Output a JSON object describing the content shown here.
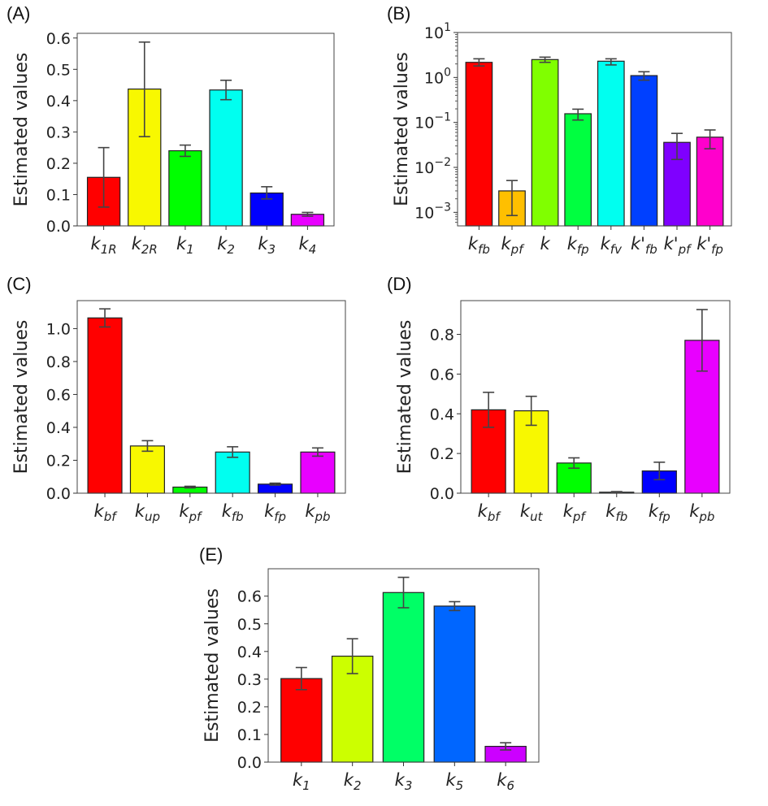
{
  "chart_data": [
    {
      "panel": "(A)",
      "type": "bar",
      "ylabel": "Estimated values",
      "yscale": "linear",
      "ylim": [
        0,
        0.615
      ],
      "yticks": [
        0.0,
        0.1,
        0.2,
        0.3,
        0.4,
        0.5,
        0.6
      ],
      "ytick_labels": [
        "0.0",
        "0.1",
        "0.2",
        "0.3",
        "0.4",
        "0.5",
        "0.6"
      ],
      "categories": [
        {
          "k": "k",
          "sub": "1R"
        },
        {
          "k": "k",
          "sub": "2R"
        },
        {
          "k": "k",
          "sub": "1"
        },
        {
          "k": "k",
          "sub": "2"
        },
        {
          "k": "k",
          "sub": "3"
        },
        {
          "k": "k",
          "sub": "4"
        }
      ],
      "values": [
        0.155,
        0.437,
        0.24,
        0.434,
        0.105,
        0.037
      ],
      "err_low": [
        0.06,
        0.285,
        0.222,
        0.403,
        0.086,
        0.031
      ],
      "err_high": [
        0.25,
        0.587,
        0.258,
        0.465,
        0.125,
        0.043
      ],
      "colors": [
        "#ff0000",
        "#f8f800",
        "#00ff00",
        "#00fff0",
        "#0000ff",
        "#e800ff"
      ]
    },
    {
      "panel": "(B)",
      "type": "bar",
      "ylabel": "Estimated values",
      "yscale": "log",
      "ylim": [
        0.0005,
        10
      ],
      "yticks": [
        0.001,
        0.01,
        0.1,
        1,
        10
      ],
      "ytick_labels": [
        {
          "base": "10",
          "exp": "−3"
        },
        {
          "base": "10",
          "exp": "−2"
        },
        {
          "base": "10",
          "exp": "−1"
        },
        {
          "base": "10",
          "exp": "0"
        },
        {
          "base": "10",
          "exp": "1"
        }
      ],
      "categories": [
        {
          "k": "k",
          "sub": "fb"
        },
        {
          "k": "k",
          "sub": "pf"
        },
        {
          "k": "k",
          "sub": ""
        },
        {
          "k": "k",
          "sub": "fp"
        },
        {
          "k": "k",
          "sub": "fv"
        },
        {
          "k": "k'",
          "sub": "fb"
        },
        {
          "k": "k'",
          "sub": "pf"
        },
        {
          "k": "k'",
          "sub": "fp"
        }
      ],
      "values": [
        2.17,
        0.003,
        2.5,
        0.156,
        2.3,
        1.1,
        0.036,
        0.047
      ],
      "err_low": [
        1.8,
        0.00085,
        2.17,
        0.113,
        1.9,
        0.87,
        0.015,
        0.026
      ],
      "err_high": [
        2.6,
        0.0051,
        2.83,
        0.197,
        2.6,
        1.34,
        0.057,
        0.068
      ],
      "colors": [
        "#ff0000",
        "#ffbf00",
        "#80ff00",
        "#00ff40",
        "#00fff0",
        "#0040ff",
        "#7f00ff",
        "#ff00cc"
      ]
    },
    {
      "panel": "(C)",
      "type": "bar",
      "ylabel": "Estimated values",
      "yscale": "linear",
      "ylim": [
        0,
        1.17
      ],
      "yticks": [
        0.0,
        0.2,
        0.4,
        0.6,
        0.8,
        1.0
      ],
      "ytick_labels": [
        "0.0",
        "0.2",
        "0.4",
        "0.6",
        "0.8",
        "1.0"
      ],
      "categories": [
        {
          "k": "k",
          "sub": "bf"
        },
        {
          "k": "k",
          "sub": "up"
        },
        {
          "k": "k",
          "sub": "pf"
        },
        {
          "k": "k",
          "sub": "fb"
        },
        {
          "k": "k",
          "sub": "fp"
        },
        {
          "k": "k",
          "sub": "pb"
        }
      ],
      "values": [
        1.065,
        0.287,
        0.037,
        0.25,
        0.055,
        0.25
      ],
      "err_low": [
        1.01,
        0.255,
        0.032,
        0.218,
        0.049,
        0.225
      ],
      "err_high": [
        1.12,
        0.319,
        0.042,
        0.282,
        0.061,
        0.275
      ],
      "colors": [
        "#ff0000",
        "#f8f800",
        "#00ff00",
        "#00fff0",
        "#0000ff",
        "#e800ff"
      ]
    },
    {
      "panel": "(D)",
      "type": "bar",
      "ylabel": "Estimated values",
      "yscale": "linear",
      "ylim": [
        0,
        0.97
      ],
      "yticks": [
        0.0,
        0.2,
        0.4,
        0.6,
        0.8
      ],
      "ytick_labels": [
        "0.0",
        "0.2",
        "0.4",
        "0.6",
        "0.8"
      ],
      "categories": [
        {
          "k": "k",
          "sub": "bf"
        },
        {
          "k": "k",
          "sub": "ut"
        },
        {
          "k": "k",
          "sub": "pf"
        },
        {
          "k": "k",
          "sub": "fb"
        },
        {
          "k": "k",
          "sub": "fp"
        },
        {
          "k": "k",
          "sub": "pb"
        }
      ],
      "values": [
        0.42,
        0.415,
        0.152,
        0.005,
        0.112,
        0.77
      ],
      "err_low": [
        0.332,
        0.342,
        0.126,
        0.002,
        0.068,
        0.615
      ],
      "err_high": [
        0.508,
        0.488,
        0.178,
        0.008,
        0.156,
        0.925
      ],
      "colors": [
        "#ff0000",
        "#f8f800",
        "#00ff00",
        "#00fff0",
        "#0000ff",
        "#e800ff"
      ]
    },
    {
      "panel": "(E)",
      "type": "bar",
      "ylabel": "Estimated values",
      "yscale": "linear",
      "ylim": [
        0,
        0.699
      ],
      "yticks": [
        0.0,
        0.1,
        0.2,
        0.3,
        0.4,
        0.5,
        0.6
      ],
      "ytick_labels": [
        "0.0",
        "0.1",
        "0.2",
        "0.3",
        "0.4",
        "0.5",
        "0.6"
      ],
      "categories": [
        {
          "k": "k",
          "sub": "1"
        },
        {
          "k": "k",
          "sub": "2"
        },
        {
          "k": "k",
          "sub": "3"
        },
        {
          "k": "k",
          "sub": "5"
        },
        {
          "k": "k",
          "sub": "6"
        }
      ],
      "values": [
        0.302,
        0.383,
        0.613,
        0.564,
        0.057
      ],
      "err_low": [
        0.262,
        0.32,
        0.558,
        0.548,
        0.044
      ],
      "err_high": [
        0.342,
        0.446,
        0.668,
        0.58,
        0.07
      ],
      "colors": [
        "#ff0000",
        "#ccff00",
        "#00ff66",
        "#0066ff",
        "#cc00ff"
      ]
    }
  ]
}
